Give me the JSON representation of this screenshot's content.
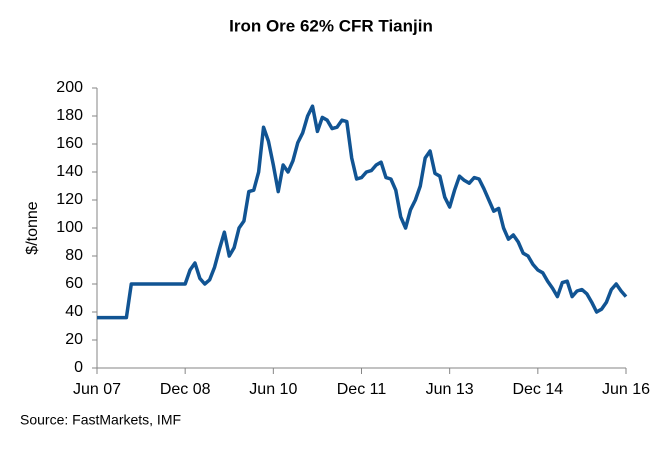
{
  "chart_data": {
    "type": "line",
    "title": "Iron Ore 62% CFR Tianjin",
    "y_label": "$/tonne",
    "source": "Source: FastMarkets,  IMF",
    "color": "#115493",
    "categories": [
      "Jun 07",
      null,
      null,
      null,
      null,
      null,
      null,
      null,
      null,
      null,
      null,
      null,
      null,
      null,
      null,
      null,
      null,
      null,
      "Dec 08",
      null,
      null,
      null,
      null,
      null,
      null,
      null,
      null,
      null,
      null,
      null,
      null,
      null,
      null,
      null,
      null,
      null,
      "Jun 10",
      null,
      null,
      null,
      null,
      null,
      null,
      null,
      null,
      null,
      null,
      null,
      null,
      null,
      null,
      null,
      null,
      null,
      "Dec 11",
      null,
      null,
      null,
      null,
      null,
      null,
      null,
      null,
      null,
      null,
      null,
      null,
      null,
      null,
      null,
      null,
      null,
      "Jun 13",
      null,
      null,
      null,
      null,
      null,
      null,
      null,
      null,
      null,
      null,
      null,
      null,
      null,
      null,
      null,
      null,
      null,
      "Dec 14",
      null,
      null,
      null,
      null,
      null,
      null,
      null,
      null,
      null,
      null,
      null,
      null,
      null,
      null,
      null,
      null,
      null,
      "Jun 16"
    ],
    "values": [
      36,
      36,
      36,
      36,
      36,
      36,
      36,
      60,
      60,
      60,
      60,
      60,
      60,
      60,
      60,
      60,
      60,
      60,
      60,
      70,
      75,
      64,
      60,
      63,
      72,
      85,
      97,
      80,
      86,
      100,
      105,
      126,
      127,
      140,
      172,
      162,
      145,
      126,
      145,
      140,
      148,
      161,
      168,
      180,
      187,
      169,
      179,
      177,
      171,
      172,
      177,
      176,
      150,
      135,
      136,
      140,
      141,
      145,
      147,
      136,
      135,
      127,
      108,
      100,
      113,
      120,
      130,
      150,
      155,
      139,
      137,
      122,
      115,
      127,
      137,
      134,
      132,
      136,
      135,
      128,
      120,
      112,
      114,
      100,
      92,
      95,
      90,
      82,
      80,
      74,
      70,
      68,
      62,
      57,
      51,
      61,
      62,
      51,
      55,
      56,
      53,
      47,
      40,
      42,
      47,
      56,
      60,
      55,
      51
    ],
    "ylim": [
      0,
      200
    ],
    "yticks": [
      0,
      20,
      40,
      60,
      80,
      100,
      120,
      140,
      160,
      180,
      200
    ],
    "grid": false
  }
}
